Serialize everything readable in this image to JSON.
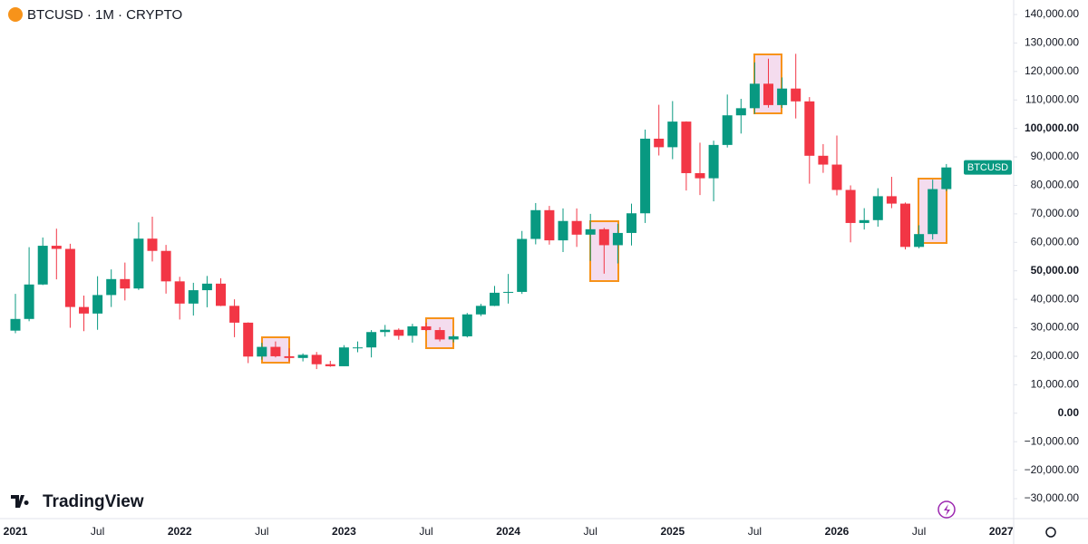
{
  "chart_data": {
    "type": "candlestick",
    "title": "BTCUSD · 1M · CRYPTO",
    "price_tag": "BTCUSD",
    "watermark": "TradingView",
    "up_color": "#089981",
    "down_color": "#f23645",
    "grid": false,
    "categories": [
      "2021",
      null,
      null,
      null,
      null,
      null,
      "Jul",
      null,
      null,
      null,
      null,
      null,
      "2022",
      null,
      null,
      null,
      null,
      null,
      "Jul",
      null,
      null,
      null,
      null,
      null,
      "2023",
      null,
      null,
      null,
      null,
      null,
      "Jul",
      null,
      null,
      null,
      null,
      null,
      "2024",
      null,
      null,
      null,
      null,
      null,
      "Jul",
      null,
      null,
      null,
      null,
      null,
      "2025",
      null,
      null,
      null,
      null,
      null,
      "Jul",
      null,
      null,
      null,
      null,
      null,
      "2026",
      null,
      null,
      null,
      null,
      null,
      "Jul",
      null,
      null,
      null,
      null,
      null,
      "2027"
    ],
    "open": [
      29000,
      33100,
      45200,
      58800,
      57700,
      37300,
      35000,
      41500,
      47100,
      43800,
      61300,
      57000,
      46300,
      38500,
      43200,
      45500,
      37700,
      31800,
      19900,
      23300,
      20000,
      19400,
      20500,
      17200,
      16500,
      23100,
      23100,
      28500,
      29300,
      27200,
      30500,
      29200,
      25900,
      27000,
      34700,
      37700,
      42300,
      42600,
      61200,
      71300,
      60700,
      67500,
      62700,
      64600,
      59000,
      63300,
      70200,
      96400,
      93400,
      102400,
      84300,
      82500,
      94200,
      104600,
      107100,
      115700,
      108200,
      114000,
      109500,
      90400,
      87300,
      78400,
      66800,
      67800,
      76200,
      73600,
      58400,
      62900,
      78700,
      null,
      null,
      null,
      null
    ],
    "high": [
      41900,
      58300,
      61700,
      64800,
      59500,
      41300,
      48100,
      50500,
      52900,
      67000,
      69000,
      59100,
      47900,
      45800,
      48200,
      47400,
      40000,
      31900,
      24700,
      25200,
      22800,
      21000,
      21500,
      18400,
      23900,
      25200,
      29200,
      31000,
      29800,
      31400,
      31800,
      30200,
      27500,
      35200,
      38400,
      44700,
      48900,
      64000,
      73800,
      72800,
      71900,
      71900,
      70000,
      65100,
      66500,
      73600,
      99600,
      108300,
      109600,
      102500,
      95000,
      95700,
      111900,
      110400,
      123200,
      124500,
      117900,
      126200,
      111000,
      94500,
      97500,
      80000,
      72000,
      79000,
      83000,
      74000,
      66000,
      82000,
      87500,
      null,
      null,
      null,
      null
    ],
    "low": [
      28100,
      32300,
      45000,
      47000,
      30000,
      28800,
      29300,
      37300,
      39600,
      43300,
      53300,
      42000,
      32900,
      34300,
      37200,
      37600,
      26700,
      17600,
      18800,
      19600,
      18200,
      18200,
      15500,
      16300,
      16500,
      21400,
      19600,
      26900,
      25800,
      24800,
      28900,
      25200,
      24900,
      26600,
      34100,
      37600,
      38500,
      41900,
      59300,
      59200,
      56600,
      58400,
      53500,
      49000,
      52600,
      58900,
      66800,
      90500,
      89200,
      78200,
      76600,
      74400,
      93300,
      98200,
      105100,
      107300,
      107200,
      103500,
      80600,
      84400,
      76500,
      60000,
      64500,
      65500,
      72000,
      57500,
      57900,
      61000,
      78000,
      null,
      null,
      null,
      null
    ],
    "close": [
      33100,
      45200,
      58800,
      57700,
      37300,
      35000,
      41500,
      47100,
      43800,
      61300,
      57000,
      46300,
      38500,
      43200,
      45500,
      37700,
      31800,
      19900,
      23300,
      20000,
      19400,
      20500,
      17200,
      16500,
      23100,
      23100,
      28500,
      29300,
      27200,
      30500,
      29200,
      25900,
      27000,
      34700,
      37700,
      42300,
      42600,
      61200,
      71300,
      60700,
      67500,
      62700,
      64600,
      59000,
      63300,
      70200,
      96400,
      93400,
      102400,
      84300,
      82500,
      94200,
      104600,
      107100,
      115700,
      108200,
      114000,
      109500,
      90400,
      87300,
      78400,
      66800,
      67800,
      76200,
      73600,
      58400,
      62900,
      78700,
      86300,
      null,
      null,
      null,
      null
    ],
    "ylim": [
      -30000,
      140000
    ],
    "yticks": [
      {
        "value": 140000,
        "label": "140,000.00"
      },
      {
        "value": 130000,
        "label": "130,000.00"
      },
      {
        "value": 120000,
        "label": "120,000.00"
      },
      {
        "value": 110000,
        "label": "110,000.00"
      },
      {
        "value": 100000,
        "label": "100,000.00"
      },
      {
        "value": 90000,
        "label": "90,000.00"
      },
      {
        "value": 80000,
        "label": "80,000.00"
      },
      {
        "value": 70000,
        "label": "70,000.00"
      },
      {
        "value": 60000,
        "label": "60,000.00"
      },
      {
        "value": 50000,
        "label": "50,000.00"
      },
      {
        "value": 40000,
        "label": "40,000.00"
      },
      {
        "value": 30000,
        "label": "30,000.00"
      },
      {
        "value": 20000,
        "label": "20,000.00"
      },
      {
        "value": 10000,
        "label": "10,000.00"
      },
      {
        "value": 0,
        "label": "0.00"
      },
      {
        "value": -10000,
        "label": "−10,000.00"
      },
      {
        "value": -20000,
        "label": "−20,000.00"
      },
      {
        "value": -30000,
        "label": "−30,000.00"
      }
    ]
  }
}
